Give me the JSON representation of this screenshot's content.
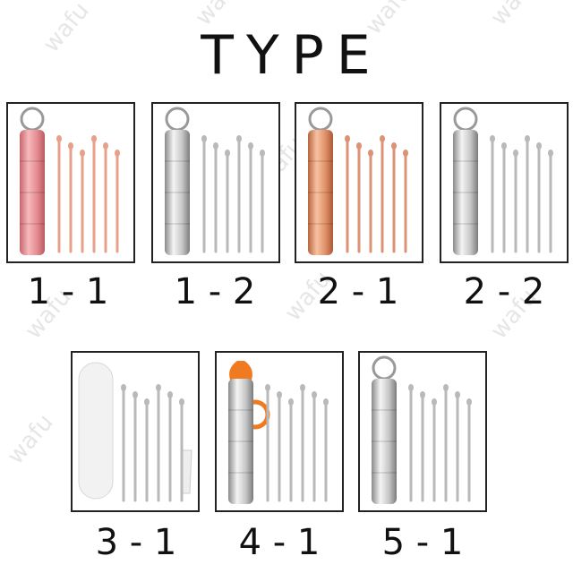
{
  "header": {
    "title": "TYPE"
  },
  "watermark": "wafu",
  "items": [
    {
      "label": "1 - 1"
    },
    {
      "label": "1 - 2"
    },
    {
      "label": "2 - 1"
    },
    {
      "label": "2 - 2"
    },
    {
      "label": "3 - 1"
    },
    {
      "label": "4 - 1"
    },
    {
      "label": "5 - 1"
    }
  ]
}
